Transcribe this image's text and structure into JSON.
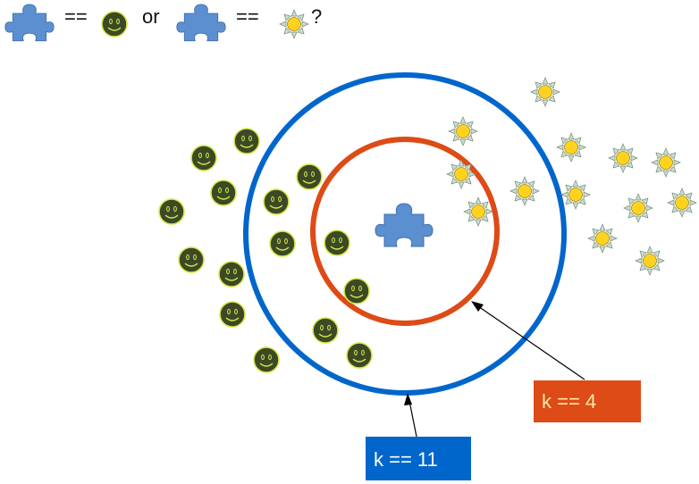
{
  "legend": {
    "equals_1": "==",
    "or_word": "or",
    "equals_2": "==",
    "question_mark": "?"
  },
  "labels": {
    "inner_k": "k == 4",
    "outer_k": "k == 11"
  },
  "colors": {
    "outer_circle": "#0066cc",
    "inner_circle": "#dd4b16",
    "outer_label_bg": "#0066cc",
    "inner_label_bg": "#dd4b16",
    "smiley_fill": "#3b4a25",
    "smiley_stroke": "#d9e84a",
    "sun_fill": "#ffd21f",
    "sun_ray": "#c7e0cc",
    "puzzle": "#5b8fd0"
  },
  "icons": {
    "query_piece": "puzzle-piece-icon",
    "class_a": "smiley-icon",
    "class_b": "sun-icon"
  }
}
